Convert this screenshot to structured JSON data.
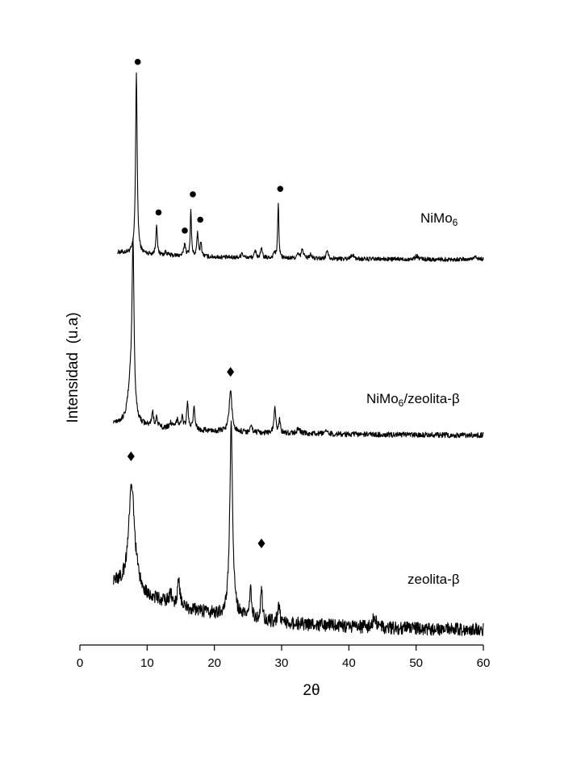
{
  "chart_data": {
    "type": "line",
    "title": "",
    "xlabel": "2θ",
    "ylabel": "Intensidad  (u.a)",
    "xlim": [
      0,
      60
    ],
    "x_ticks": [
      "0",
      "10",
      "20",
      "30",
      "40",
      "50",
      "60"
    ],
    "grid": false,
    "legend": "none",
    "series": [
      {
        "name": "NiMo6",
        "label_main": "NiMo",
        "label_sub": "6",
        "label_rest": "",
        "color": "#000000",
        "baseline": 0.04,
        "x_start": 5.6,
        "x_end": 60,
        "noise": 0.012,
        "peaks": [
          [
            8.4,
            1.0,
            0.14
          ],
          [
            11.4,
            0.17,
            0.12
          ],
          [
            12.8,
            0.02,
            0.15
          ],
          [
            15.6,
            0.07,
            0.15
          ],
          [
            16.5,
            0.26,
            0.1
          ],
          [
            17.5,
            0.13,
            0.12
          ],
          [
            18.0,
            0.08,
            0.12
          ],
          [
            24.1,
            0.03,
            0.15
          ],
          [
            26.1,
            0.04,
            0.15
          ],
          [
            27.0,
            0.05,
            0.15
          ],
          [
            28.9,
            0.03,
            0.15
          ],
          [
            29.5,
            0.31,
            0.1
          ],
          [
            32.4,
            0.02,
            0.2
          ],
          [
            33.1,
            0.05,
            0.2
          ],
          [
            34.3,
            0.02,
            0.2
          ],
          [
            36.8,
            0.05,
            0.18
          ],
          [
            40.5,
            0.025,
            0.25
          ],
          [
            50.1,
            0.02,
            0.25
          ],
          [
            58.8,
            0.02,
            0.25
          ]
        ],
        "markers": [
          {
            "symbol": "circle",
            "x": 8.6,
            "y": 1.09
          },
          {
            "symbol": "circle",
            "x": 11.7,
            "y": 0.26
          },
          {
            "symbol": "circle",
            "x": 15.6,
            "y": 0.16
          },
          {
            "symbol": "circle",
            "x": 16.8,
            "y": 0.36
          },
          {
            "symbol": "circle",
            "x": 17.9,
            "y": 0.22
          },
          {
            "symbol": "circle",
            "x": 29.8,
            "y": 0.39
          }
        ]
      },
      {
        "name": "NiMo6/zeolita-β",
        "label_main": "NiMo",
        "label_sub": "6",
        "label_rest": "/zeolita-β",
        "color": "#000000",
        "baseline": 0.07,
        "x_start": 5.0,
        "x_end": 60,
        "noise": 0.015,
        "peaks": [
          [
            7.9,
            0.92,
            0.18
          ],
          [
            7.5,
            0.2,
            0.45
          ],
          [
            10.8,
            0.08,
            0.15
          ],
          [
            11.4,
            0.05,
            0.15
          ],
          [
            13.5,
            0.03,
            0.2
          ],
          [
            14.5,
            0.05,
            0.2
          ],
          [
            15.2,
            0.06,
            0.2
          ],
          [
            16.0,
            0.14,
            0.15
          ],
          [
            17.0,
            0.12,
            0.15
          ],
          [
            22.4,
            0.22,
            0.25
          ],
          [
            25.5,
            0.03,
            0.2
          ],
          [
            29.0,
            0.14,
            0.15
          ],
          [
            29.7,
            0.07,
            0.15
          ],
          [
            32.5,
            0.025,
            0.3
          ],
          [
            36.8,
            0.015,
            0.3
          ]
        ],
        "markers": [
          {
            "symbol": "diamond",
            "x": 22.4,
            "y": 0.35
          }
        ]
      },
      {
        "name": "zeolita-β",
        "label_main": "zeolita-β",
        "label_sub": "",
        "label_rest": "",
        "color": "#000000",
        "baseline": 0.22,
        "x_start": 5.0,
        "x_end": 60,
        "noise": 0.03,
        "peaks": [
          [
            7.7,
            0.48,
            0.55
          ],
          [
            14.7,
            0.12,
            0.2
          ],
          [
            13.5,
            0.04,
            0.3
          ],
          [
            22.5,
            0.88,
            0.25
          ],
          [
            25.4,
            0.13,
            0.18
          ],
          [
            27.0,
            0.16,
            0.14
          ],
          [
            29.6,
            0.07,
            0.2
          ],
          [
            43.8,
            0.05,
            0.3
          ]
        ],
        "markers": [
          {
            "symbol": "diamond",
            "x": 7.6,
            "y": 0.8
          },
          {
            "symbol": "diamond",
            "x": 27.0,
            "y": 0.4
          }
        ]
      }
    ]
  }
}
